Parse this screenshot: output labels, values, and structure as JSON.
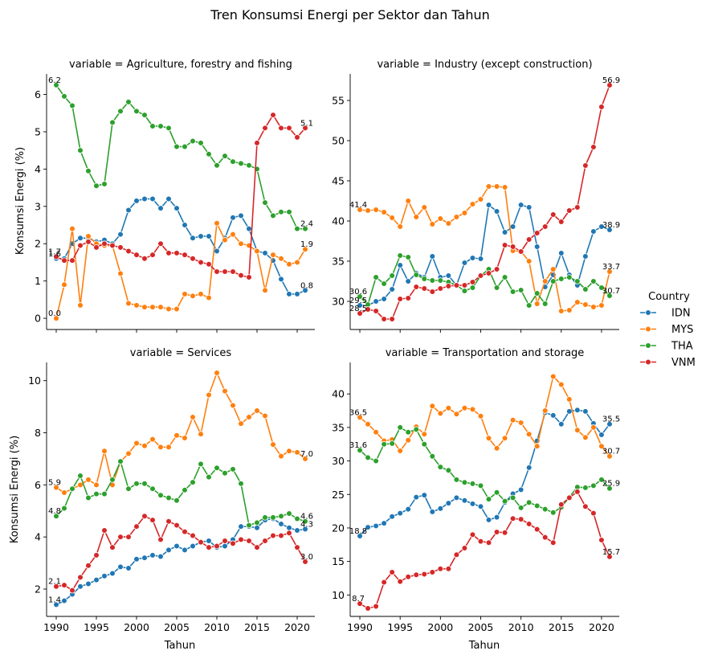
{
  "figure": {
    "title": "Tren Konsumsi Energi per Sektor dan Tahun",
    "xlabel": "Tahun",
    "ylabel": "Konsumsi Energi (%)",
    "legend_title": "Country",
    "legend_placement": "right",
    "grid": false
  },
  "colors": {
    "IDN": "#1f77b4",
    "MYS": "#ff7f0e",
    "THA": "#2ca02c",
    "VNM": "#d62728"
  },
  "chart_data": [
    {
      "type": "line",
      "title": "variable = Agriculture, forestry and fishing",
      "x": [
        1990,
        1991,
        1992,
        1993,
        1994,
        1995,
        1996,
        1997,
        1998,
        1999,
        2000,
        2001,
        2002,
        2003,
        2004,
        2005,
        2006,
        2007,
        2008,
        2009,
        2010,
        2011,
        2012,
        2013,
        2014,
        2015,
        2016,
        2017,
        2018,
        2019,
        2020,
        2021
      ],
      "xlim": [
        1988.8,
        2022.2
      ],
      "ylim": [
        -0.3,
        6.55
      ],
      "xticks": [
        1990,
        1995,
        2000,
        2005,
        2010,
        2015,
        2020
      ],
      "yticks": [
        0,
        1,
        2,
        3,
        4,
        5,
        6
      ],
      "series": [
        {
          "name": "IDN",
          "values": [
            1.6,
            1.6,
            2.0,
            2.15,
            2.15,
            2.05,
            2.1,
            2.0,
            2.25,
            2.9,
            3.15,
            3.2,
            3.2,
            2.95,
            3.2,
            2.95,
            2.5,
            2.15,
            2.2,
            2.2,
            1.8,
            2.15,
            2.7,
            2.75,
            2.4,
            1.8,
            1.75,
            1.55,
            1.05,
            0.65,
            0.65,
            0.75
          ]
        },
        {
          "name": "MYS",
          "values": [
            0.0,
            0.9,
            2.4,
            0.35,
            2.2,
            2.0,
            1.95,
            1.95,
            1.2,
            0.4,
            0.35,
            0.3,
            0.3,
            0.3,
            0.25,
            0.25,
            0.65,
            0.6,
            0.65,
            0.55,
            2.55,
            2.1,
            2.25,
            2.0,
            1.95,
            1.8,
            0.75,
            1.7,
            1.6,
            1.45,
            1.5,
            1.85
          ]
        },
        {
          "name": "THA",
          "values": [
            6.25,
            5.95,
            5.7,
            4.5,
            3.95,
            3.55,
            3.6,
            5.25,
            5.55,
            5.8,
            5.55,
            5.45,
            5.15,
            5.15,
            5.1,
            4.6,
            4.6,
            4.75,
            4.7,
            4.4,
            4.1,
            4.35,
            4.2,
            4.15,
            4.1,
            4.0,
            3.1,
            2.75,
            2.85,
            2.85,
            2.4,
            2.4
          ]
        },
        {
          "name": "VNM",
          "values": [
            1.65,
            1.55,
            1.55,
            1.95,
            2.05,
            1.9,
            2.0,
            1.95,
            1.9,
            1.8,
            1.7,
            1.6,
            1.7,
            2.0,
            1.75,
            1.75,
            1.7,
            1.6,
            1.5,
            1.45,
            1.25,
            1.25,
            1.25,
            1.15,
            1.1,
            4.7,
            5.1,
            5.45,
            5.1,
            5.1,
            4.85,
            5.1
          ]
        }
      ],
      "annotations": [
        {
          "x": 1990,
          "y": 6.25,
          "text": "6.2"
        },
        {
          "x": 1990,
          "y": 1.6,
          "text": "1.6"
        },
        {
          "x": 1990,
          "y": 1.65,
          "text": "1.7"
        },
        {
          "x": 1990,
          "y": 0.0,
          "text": "0.0"
        },
        {
          "x": 2021,
          "y": 5.1,
          "text": "5.1"
        },
        {
          "x": 2021,
          "y": 2.4,
          "text": "2.4"
        },
        {
          "x": 2021,
          "y": 1.85,
          "text": "1.9"
        },
        {
          "x": 2021,
          "y": 0.75,
          "text": "0.8"
        }
      ]
    },
    {
      "type": "line",
      "title": "variable = Industry (except construction)",
      "x": [
        1990,
        1991,
        1992,
        1993,
        1994,
        1995,
        1996,
        1997,
        1998,
        1999,
        2000,
        2001,
        2002,
        2003,
        2004,
        2005,
        2006,
        2007,
        2008,
        2009,
        2010,
        2011,
        2012,
        2013,
        2014,
        2015,
        2016,
        2017,
        2018,
        2019,
        2020,
        2021
      ],
      "xlim": [
        1988.8,
        2022.2
      ],
      "ylim": [
        26.5,
        58.3
      ],
      "xticks": [
        1990,
        1995,
        2000,
        2005,
        2010,
        2015,
        2020
      ],
      "yticks": [
        30,
        35,
        40,
        45,
        50,
        55
      ],
      "series": [
        {
          "name": "IDN",
          "values": [
            29.5,
            29.5,
            30.0,
            30.3,
            31.5,
            34.5,
            32.5,
            33.5,
            33.0,
            35.6,
            33.0,
            33.2,
            32.0,
            34.8,
            35.4,
            35.3,
            42.0,
            41.2,
            38.6,
            39.3,
            42.0,
            41.7,
            36.8,
            31.8,
            33.3,
            36.0,
            33.3,
            32.0,
            35.6,
            38.7,
            39.3,
            38.9
          ]
        },
        {
          "name": "MYS",
          "values": [
            41.4,
            41.3,
            41.4,
            41.1,
            40.4,
            39.3,
            42.5,
            40.5,
            41.7,
            39.6,
            40.3,
            39.7,
            40.5,
            41.0,
            42.1,
            42.7,
            44.3,
            44.3,
            44.2,
            36.3,
            36.2,
            35.0,
            29.7,
            32.5,
            34.0,
            28.8,
            28.9,
            29.9,
            29.6,
            29.3,
            29.5,
            33.7
          ]
        },
        {
          "name": "THA",
          "values": [
            30.6,
            29.6,
            33.0,
            32.2,
            33.2,
            35.7,
            35.5,
            33.3,
            32.8,
            32.6,
            32.6,
            32.4,
            32.0,
            31.3,
            31.7,
            33.2,
            34.0,
            31.7,
            33.0,
            31.2,
            31.4,
            29.5,
            31.0,
            29.7,
            32.5,
            32.8,
            33.0,
            32.5,
            31.5,
            32.5,
            31.7,
            30.7
          ]
        },
        {
          "name": "VNM",
          "values": [
            28.5,
            29.0,
            28.8,
            27.8,
            27.8,
            30.3,
            30.4,
            31.8,
            31.6,
            31.2,
            31.6,
            31.9,
            32.0,
            32.0,
            32.4,
            33.2,
            33.5,
            34.0,
            37.0,
            36.8,
            36.2,
            37.7,
            38.5,
            39.3,
            40.8,
            39.9,
            41.3,
            41.7,
            46.9,
            49.2,
            54.2,
            56.9
          ]
        }
      ],
      "annotations": [
        {
          "x": 1990,
          "y": 41.4,
          "text": "41.4"
        },
        {
          "x": 1990,
          "y": 30.6,
          "text": "30.6"
        },
        {
          "x": 1990,
          "y": 29.5,
          "text": "29.5"
        },
        {
          "x": 1990,
          "y": 28.5,
          "text": "28.5"
        },
        {
          "x": 2021,
          "y": 56.9,
          "text": "56.9"
        },
        {
          "x": 2021,
          "y": 38.9,
          "text": "38.9"
        },
        {
          "x": 2021,
          "y": 33.7,
          "text": "33.7"
        },
        {
          "x": 2021,
          "y": 30.7,
          "text": "30.7"
        }
      ]
    },
    {
      "type": "line",
      "title": "variable = Services",
      "x": [
        1990,
        1991,
        1992,
        1993,
        1994,
        1995,
        1996,
        1997,
        1998,
        1999,
        2000,
        2001,
        2002,
        2003,
        2004,
        2005,
        2006,
        2007,
        2008,
        2009,
        2010,
        2011,
        2012,
        2013,
        2014,
        2015,
        2016,
        2017,
        2018,
        2019,
        2020,
        2021
      ],
      "xlim": [
        1988.8,
        2022.2
      ],
      "ylim": [
        0.95,
        10.7
      ],
      "xticks": [
        1990,
        1995,
        2000,
        2005,
        2010,
        2015,
        2020
      ],
      "yticks": [
        2,
        4,
        6,
        8,
        10
      ],
      "series": [
        {
          "name": "IDN",
          "values": [
            1.4,
            1.55,
            1.8,
            2.1,
            2.2,
            2.35,
            2.5,
            2.6,
            2.85,
            2.8,
            3.15,
            3.2,
            3.3,
            3.25,
            3.5,
            3.65,
            3.5,
            3.65,
            3.8,
            3.85,
            3.6,
            3.65,
            3.9,
            4.4,
            4.4,
            4.35,
            4.65,
            4.7,
            4.5,
            4.35,
            4.25,
            4.3
          ]
        },
        {
          "name": "MYS",
          "values": [
            5.9,
            5.7,
            5.85,
            6.0,
            6.2,
            6.0,
            7.3,
            6.0,
            6.9,
            7.2,
            7.6,
            7.5,
            7.75,
            7.45,
            7.45,
            7.9,
            7.8,
            8.6,
            7.95,
            9.45,
            10.3,
            9.6,
            9.05,
            8.35,
            8.6,
            8.85,
            8.65,
            7.55,
            7.1,
            7.3,
            7.25,
            7.0
          ]
        },
        {
          "name": "THA",
          "values": [
            4.8,
            5.1,
            5.85,
            6.35,
            5.5,
            5.65,
            5.65,
            6.2,
            6.9,
            5.85,
            6.05,
            6.05,
            5.85,
            5.6,
            5.5,
            5.4,
            5.8,
            6.1,
            6.8,
            6.3,
            6.65,
            6.45,
            6.6,
            6.05,
            4.45,
            4.55,
            4.75,
            4.75,
            4.8,
            4.9,
            4.7,
            4.6
          ]
        },
        {
          "name": "VNM",
          "values": [
            2.1,
            2.15,
            1.95,
            2.45,
            2.9,
            3.3,
            4.25,
            3.6,
            4.0,
            4.0,
            4.4,
            4.8,
            4.65,
            3.9,
            4.6,
            4.45,
            4.2,
            4.05,
            3.8,
            3.6,
            3.65,
            3.85,
            3.75,
            3.9,
            3.85,
            3.6,
            3.85,
            4.05,
            4.05,
            4.15,
            3.6,
            3.05
          ]
        }
      ],
      "annotations": [
        {
          "x": 1990,
          "y": 5.9,
          "text": "5.9"
        },
        {
          "x": 1990,
          "y": 4.8,
          "text": "4.8"
        },
        {
          "x": 1990,
          "y": 2.1,
          "text": "2.1"
        },
        {
          "x": 1990,
          "y": 1.4,
          "text": "1.4"
        },
        {
          "x": 2021,
          "y": 7.0,
          "text": "7.0"
        },
        {
          "x": 2021,
          "y": 4.6,
          "text": "4.6"
        },
        {
          "x": 2021,
          "y": 4.3,
          "text": "4.3"
        },
        {
          "x": 2021,
          "y": 3.05,
          "text": "3.0"
        }
      ]
    },
    {
      "type": "line",
      "title": "variable = Transportation and storage",
      "x": [
        1990,
        1991,
        1992,
        1993,
        1994,
        1995,
        1996,
        1997,
        1998,
        1999,
        2000,
        2001,
        2002,
        2003,
        2004,
        2005,
        2006,
        2007,
        2008,
        2009,
        2010,
        2011,
        2012,
        2013,
        2014,
        2015,
        2016,
        2017,
        2018,
        2019,
        2020,
        2021
      ],
      "xlim": [
        1988.8,
        2022.2
      ],
      "ylim": [
        6.8,
        44.7
      ],
      "xticks": [
        1990,
        1995,
        2000,
        2005,
        2010,
        2015,
        2020
      ],
      "yticks": [
        10,
        15,
        20,
        25,
        30,
        35,
        40
      ],
      "series": [
        {
          "name": "IDN",
          "values": [
            18.8,
            20.1,
            20.3,
            20.7,
            21.7,
            22.2,
            22.8,
            24.6,
            24.9,
            22.4,
            22.9,
            23.7,
            24.5,
            24.1,
            23.6,
            23.2,
            21.2,
            21.6,
            23.8,
            25.1,
            25.7,
            29.0,
            33.0,
            37.2,
            36.8,
            35.5,
            37.4,
            37.6,
            37.4,
            35.6,
            33.9,
            35.5
          ]
        },
        {
          "name": "MYS",
          "values": [
            36.5,
            35.5,
            34.3,
            33.0,
            33.2,
            31.5,
            33.1,
            35.1,
            34.0,
            38.2,
            37.1,
            37.9,
            37.0,
            37.9,
            37.7,
            36.7,
            33.4,
            31.9,
            33.4,
            36.1,
            35.7,
            34.0,
            32.2,
            37.5,
            42.6,
            41.4,
            39.2,
            34.6,
            33.5,
            35.0,
            32.2,
            30.7
          ]
        },
        {
          "name": "THA",
          "values": [
            31.6,
            30.5,
            30.0,
            32.5,
            32.6,
            35.0,
            34.3,
            34.7,
            32.5,
            30.7,
            29.1,
            28.6,
            27.2,
            26.8,
            26.6,
            26.3,
            24.3,
            25.3,
            24.0,
            24.5,
            23.0,
            23.8,
            23.3,
            22.8,
            22.3,
            23.1,
            24.6,
            26.1,
            26.0,
            26.3,
            27.2,
            25.9
          ]
        },
        {
          "name": "VNM",
          "values": [
            8.7,
            8.0,
            8.3,
            11.9,
            13.4,
            12.0,
            12.7,
            13.0,
            13.1,
            13.4,
            13.9,
            13.9,
            16.0,
            17.0,
            19.0,
            18.0,
            17.8,
            19.4,
            19.3,
            21.4,
            21.3,
            20.6,
            19.8,
            18.6,
            17.8,
            23.5,
            24.5,
            25.4,
            23.2,
            22.2,
            18.2,
            15.7
          ]
        }
      ],
      "annotations": [
        {
          "x": 1990,
          "y": 36.5,
          "text": "36.5"
        },
        {
          "x": 1990,
          "y": 31.6,
          "text": "31.6"
        },
        {
          "x": 1990,
          "y": 18.8,
          "text": "18.8"
        },
        {
          "x": 1990,
          "y": 8.7,
          "text": "8.7"
        },
        {
          "x": 2021,
          "y": 35.5,
          "text": "35.5"
        },
        {
          "x": 2021,
          "y": 30.7,
          "text": "30.7"
        },
        {
          "x": 2021,
          "y": 25.9,
          "text": "25.9"
        },
        {
          "x": 2021,
          "y": 15.7,
          "text": "15.7"
        }
      ]
    }
  ]
}
